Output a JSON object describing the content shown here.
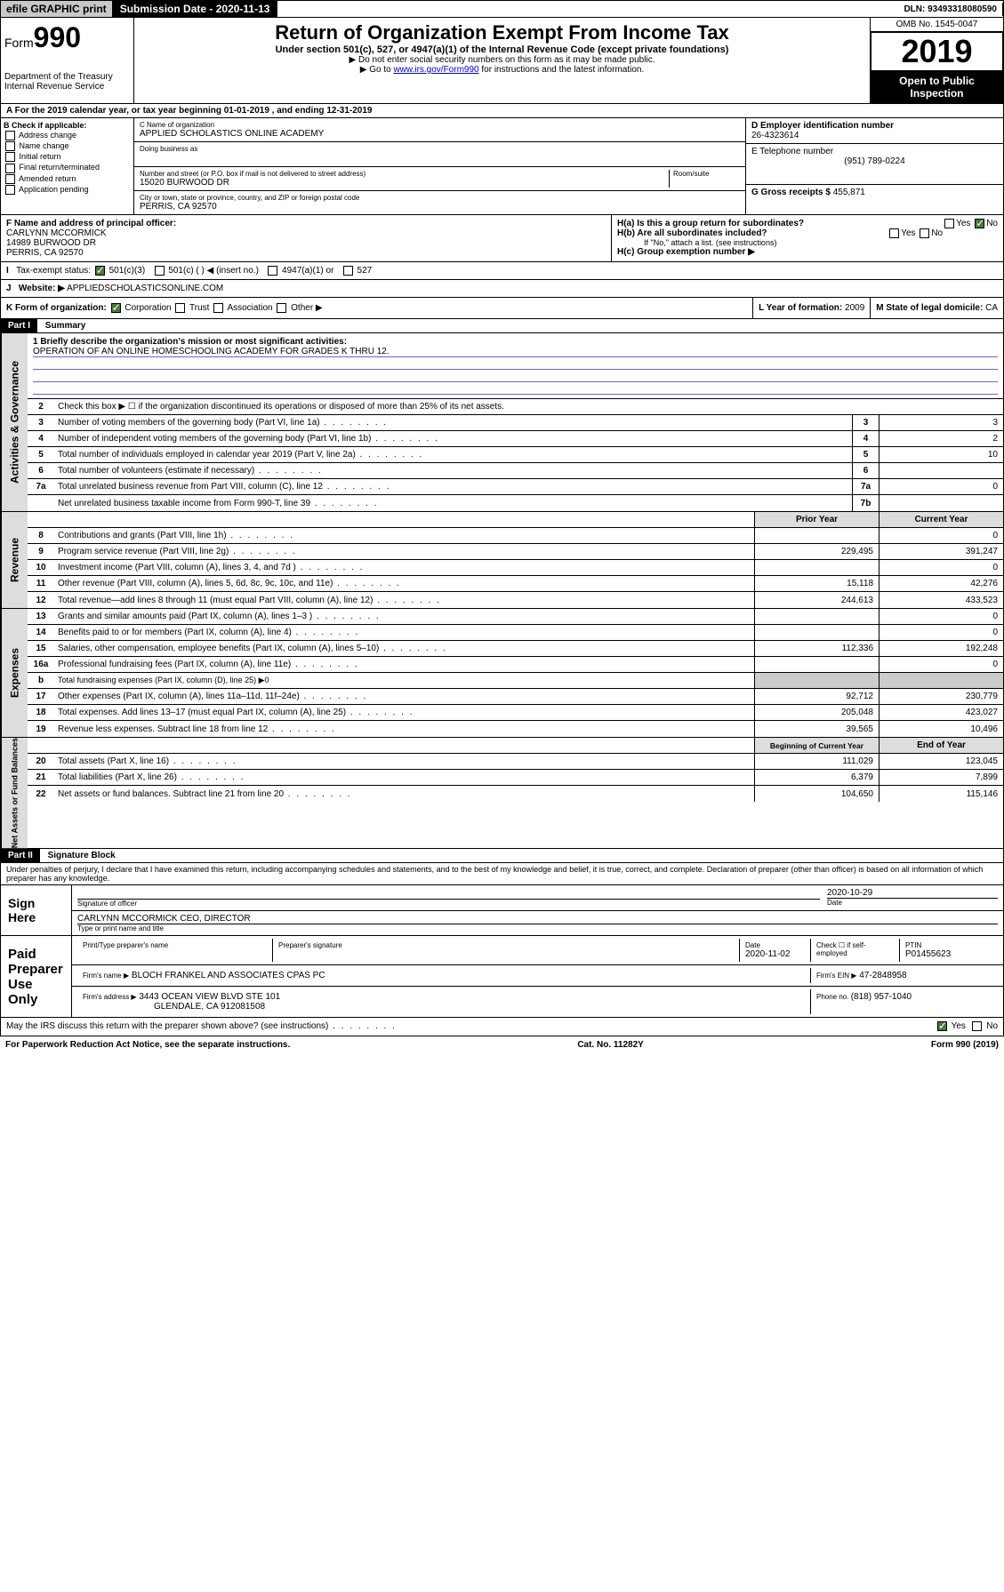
{
  "topbar": {
    "efile": "efile GRAPHIC print",
    "submission_label": "Submission Date - ",
    "submission_date": "2020-11-13",
    "dln_label": "DLN: ",
    "dln": "93493318080590"
  },
  "header": {
    "form_label": "Form",
    "form_num": "990",
    "dept": "Department of the Treasury\nInternal Revenue Service",
    "title": "Return of Organization Exempt From Income Tax",
    "subtitle": "Under section 501(c), 527, or 4947(a)(1) of the Internal Revenue Code (except private foundations)",
    "instr1": "▶ Do not enter social security numbers on this form as it may be made public.",
    "instr2_pre": "▶ Go to ",
    "instr2_link": "www.irs.gov/Form990",
    "instr2_post": " for instructions and the latest information.",
    "omb": "OMB No. 1545-0047",
    "year": "2019",
    "open": "Open to Public Inspection"
  },
  "rowA": {
    "text": "A For the 2019 calendar year, or tax year beginning 01-01-2019    , and ending 12-31-2019"
  },
  "colB": {
    "label": "B Check if applicable:",
    "opts": [
      "Address change",
      "Name change",
      "Initial return",
      "Final return/terminated",
      "Amended return",
      "Application pending"
    ]
  },
  "colC": {
    "name_label": "C Name of organization",
    "name": "APPLIED SCHOLASTICS ONLINE ACADEMY",
    "dba_label": "Doing business as",
    "addr_label": "Number and street (or P.O. box if mail is not delivered to street address)",
    "room_label": "Room/suite",
    "addr": "15020 BURWOOD DR",
    "city_label": "City or town, state or province, country, and ZIP or foreign postal code",
    "city": "PERRIS, CA  92570"
  },
  "colD": {
    "ein_label": "D Employer identification number",
    "ein": "26-4323614",
    "phone_label": "E Telephone number",
    "phone": "(951) 789-0224",
    "gross_label": "G Gross receipts $ ",
    "gross": "455,871"
  },
  "colF": {
    "label": "F  Name and address of principal officer:",
    "name": "CARLYNN MCCORMICK",
    "addr": "14989 BURWOOD DR",
    "city": "PERRIS, CA  92570"
  },
  "colH": {
    "a_label": "H(a)  Is this a group return for subordinates?",
    "b_label": "H(b)  Are all subordinates included?",
    "b_note": "If \"No,\" attach a list. (see instructions)",
    "c_label": "H(c)  Group exemption number ▶"
  },
  "rowI": {
    "label": "Tax-exempt status:",
    "opts": [
      "501(c)(3)",
      "501(c) (  ) ◀ (insert no.)",
      "4947(a)(1) or",
      "527"
    ]
  },
  "rowJ": {
    "label": "Website: ▶",
    "val": "APPLIEDSCHOLASTICSONLINE.COM"
  },
  "rowK": {
    "form_label": "K Form of organization:",
    "opts": [
      "Corporation",
      "Trust",
      "Association",
      "Other ▶"
    ],
    "year_label": "L Year of formation: ",
    "year": "2009",
    "state_label": "M State of legal domicile: ",
    "state": "CA"
  },
  "part1": {
    "header": "Part I",
    "title": "Summary",
    "line1_label": "1  Briefly describe the organization's mission or most significant activities:",
    "mission": "OPERATION OF AN ONLINE HOMESCHOOLING ACADEMY FOR GRADES K THRU 12.",
    "line2": "Check this box ▶ ☐  if the organization discontinued its operations or disposed of more than 25% of its net assets.",
    "sidebar1": "Activities & Governance",
    "sidebar2": "Revenue",
    "sidebar3": "Expenses",
    "sidebar4": "Net Assets or Fund Balances",
    "prior_year": "Prior Year",
    "current_year": "Current Year",
    "begin_year": "Beginning of Current Year",
    "end_year": "End of Year"
  },
  "lines_gov": [
    {
      "n": "3",
      "t": "Number of voting members of the governing body (Part VI, line 1a)",
      "box": "3",
      "v": "3"
    },
    {
      "n": "4",
      "t": "Number of independent voting members of the governing body (Part VI, line 1b)",
      "box": "4",
      "v": "2"
    },
    {
      "n": "5",
      "t": "Total number of individuals employed in calendar year 2019 (Part V, line 2a)",
      "box": "5",
      "v": "10"
    },
    {
      "n": "6",
      "t": "Total number of volunteers (estimate if necessary)",
      "box": "6",
      "v": ""
    },
    {
      "n": "7a",
      "t": "Total unrelated business revenue from Part VIII, column (C), line 12",
      "box": "7a",
      "v": "0"
    },
    {
      "n": "",
      "t": "Net unrelated business taxable income from Form 990-T, line 39",
      "box": "7b",
      "v": ""
    }
  ],
  "lines_rev": [
    {
      "n": "8",
      "t": "Contributions and grants (Part VIII, line 1h)",
      "p": "",
      "c": "0"
    },
    {
      "n": "9",
      "t": "Program service revenue (Part VIII, line 2g)",
      "p": "229,495",
      "c": "391,247"
    },
    {
      "n": "10",
      "t": "Investment income (Part VIII, column (A), lines 3, 4, and 7d )",
      "p": "",
      "c": "0"
    },
    {
      "n": "11",
      "t": "Other revenue (Part VIII, column (A), lines 5, 6d, 8c, 9c, 10c, and 11e)",
      "p": "15,118",
      "c": "42,276"
    },
    {
      "n": "12",
      "t": "Total revenue—add lines 8 through 11 (must equal Part VIII, column (A), line 12)",
      "p": "244,613",
      "c": "433,523"
    }
  ],
  "lines_exp": [
    {
      "n": "13",
      "t": "Grants and similar amounts paid (Part IX, column (A), lines 1–3 )",
      "p": "",
      "c": "0"
    },
    {
      "n": "14",
      "t": "Benefits paid to or for members (Part IX, column (A), line 4)",
      "p": "",
      "c": "0"
    },
    {
      "n": "15",
      "t": "Salaries, other compensation, employee benefits (Part IX, column (A), lines 5–10)",
      "p": "112,336",
      "c": "192,248"
    },
    {
      "n": "16a",
      "t": "Professional fundraising fees (Part IX, column (A), line 11e)",
      "p": "",
      "c": "0"
    },
    {
      "n": "b",
      "t": "Total fundraising expenses (Part IX, column (D), line 25) ▶0",
      "p": "—",
      "c": "—"
    },
    {
      "n": "17",
      "t": "Other expenses (Part IX, column (A), lines 11a–11d, 11f–24e)",
      "p": "92,712",
      "c": "230,779"
    },
    {
      "n": "18",
      "t": "Total expenses. Add lines 13–17 (must equal Part IX, column (A), line 25)",
      "p": "205,048",
      "c": "423,027"
    },
    {
      "n": "19",
      "t": "Revenue less expenses. Subtract line 18 from line 12",
      "p": "39,565",
      "c": "10,496"
    }
  ],
  "lines_net": [
    {
      "n": "20",
      "t": "Total assets (Part X, line 16)",
      "p": "111,029",
      "c": "123,045"
    },
    {
      "n": "21",
      "t": "Total liabilities (Part X, line 26)",
      "p": "6,379",
      "c": "7,899"
    },
    {
      "n": "22",
      "t": "Net assets or fund balances. Subtract line 21 from line 20",
      "p": "104,650",
      "c": "115,146"
    }
  ],
  "part2": {
    "header": "Part II",
    "title": "Signature Block",
    "perjury": "Under penalties of perjury, I declare that I have examined this return, including accompanying schedules and statements, and to the best of my knowledge and belief, it is true, correct, and complete. Declaration of preparer (other than officer) is based on all information of which preparer has any knowledge."
  },
  "sign": {
    "here": "Sign Here",
    "sig_label": "Signature of officer",
    "date": "2020-10-29",
    "date_label": "Date",
    "name": "CARLYNN MCCORMICK CEO, DIRECTOR",
    "name_label": "Type or print name and title"
  },
  "paid": {
    "label": "Paid Preparer Use Only",
    "prep_name_label": "Print/Type preparer's name",
    "prep_sig_label": "Preparer's signature",
    "prep_date_label": "Date",
    "prep_date": "2020-11-02",
    "check_label": "Check ☐ if self-employed",
    "ptin_label": "PTIN",
    "ptin": "P01455623",
    "firm_name_label": "Firm's name    ▶",
    "firm_name": "BLOCH FRANKEL AND ASSOCIATES CPAS PC",
    "firm_ein_label": "Firm's EIN ▶",
    "firm_ein": "47-2848958",
    "firm_addr_label": "Firm's address ▶",
    "firm_addr": "3443 OCEAN VIEW BLVD STE 101",
    "firm_city": "GLENDALE, CA  912081508",
    "phone_label": "Phone no. ",
    "phone": "(818) 957-1040"
  },
  "discuss": {
    "text": "May the IRS discuss this return with the preparer shown above? (see instructions)"
  },
  "footer": {
    "left": "For Paperwork Reduction Act Notice, see the separate instructions.",
    "mid": "Cat. No. 11282Y",
    "right": "Form 990 (2019)"
  }
}
